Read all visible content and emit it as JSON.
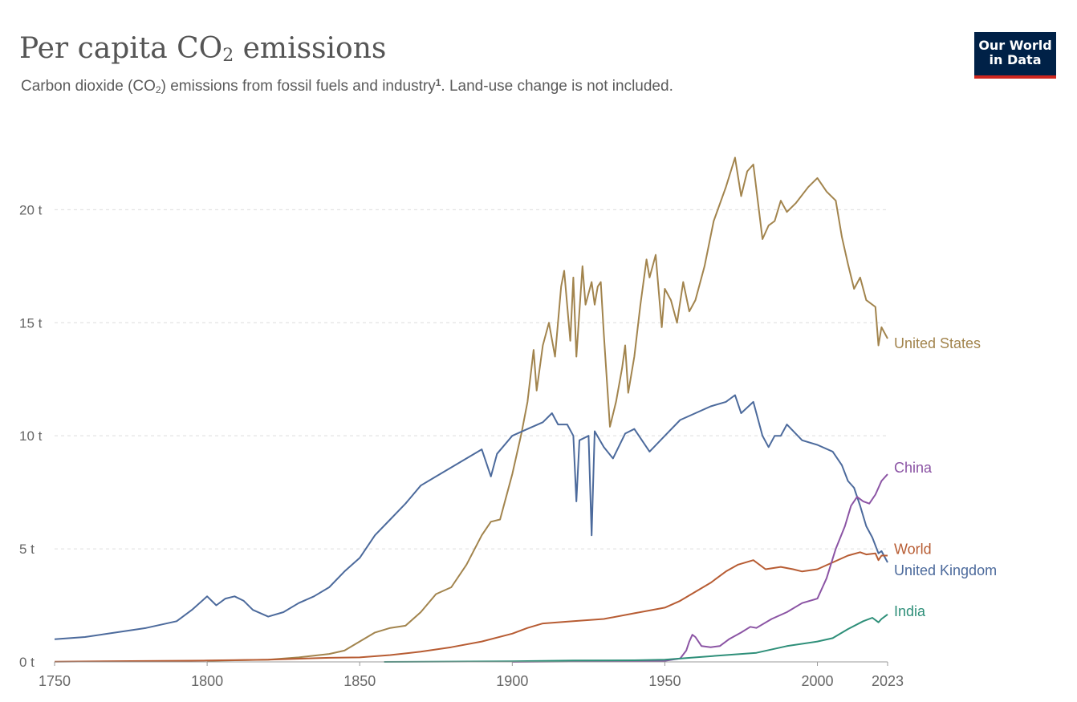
{
  "header": {
    "title_main": "Per capita CO",
    "title_sub": "2",
    "title_end": " emissions",
    "subtitle_a": "Carbon dioxide (CO",
    "subtitle_sub": "2",
    "subtitle_b": ") emissions from fossil fuels and industry",
    "subtitle_sup": "1",
    "subtitle_c": ". Land-use change is not included.",
    "logo_line1": "Our World",
    "logo_line2": "in Data"
  },
  "chart_data": {
    "type": "line",
    "title": "Per capita CO₂ emissions",
    "subtitle": "Carbon dioxide (CO₂) emissions from fossil fuels and industry¹. Land-use change is not included.",
    "xlim": [
      1750,
      2023
    ],
    "ylim": [
      0,
      22
    ],
    "x_ticks": [
      1750,
      1800,
      1850,
      1900,
      1950,
      2000,
      2023
    ],
    "y_ticks": [
      0,
      5,
      10,
      15,
      20
    ],
    "y_tick_labels": [
      "0 t",
      "5 t",
      "10 t",
      "15 t",
      "20 t"
    ],
    "grid": "horizontal dashed",
    "legend": "inline labels at right end of lines",
    "series": [
      {
        "name": "United States",
        "color": "#a2844d",
        "points": [
          [
            1800,
            0.05
          ],
          [
            1820,
            0.1
          ],
          [
            1830,
            0.2
          ],
          [
            1840,
            0.35
          ],
          [
            1845,
            0.5
          ],
          [
            1850,
            0.9
          ],
          [
            1855,
            1.3
          ],
          [
            1860,
            1.5
          ],
          [
            1865,
            1.6
          ],
          [
            1870,
            2.2
          ],
          [
            1875,
            3.0
          ],
          [
            1880,
            3.3
          ],
          [
            1885,
            4.3
          ],
          [
            1890,
            5.6
          ],
          [
            1893,
            6.2
          ],
          [
            1896,
            6.3
          ],
          [
            1900,
            8.3
          ],
          [
            1903,
            10.1
          ],
          [
            1905,
            11.5
          ],
          [
            1907,
            13.8
          ],
          [
            1908,
            12.0
          ],
          [
            1910,
            14.0
          ],
          [
            1912,
            15.0
          ],
          [
            1914,
            13.5
          ],
          [
            1916,
            16.6
          ],
          [
            1917,
            17.3
          ],
          [
            1919,
            14.2
          ],
          [
            1920,
            17.0
          ],
          [
            1921,
            13.5
          ],
          [
            1923,
            17.5
          ],
          [
            1924,
            15.8
          ],
          [
            1926,
            16.8
          ],
          [
            1927,
            15.8
          ],
          [
            1928,
            16.6
          ],
          [
            1929,
            16.8
          ],
          [
            1930,
            14.5
          ],
          [
            1932,
            10.4
          ],
          [
            1934,
            11.5
          ],
          [
            1936,
            13.0
          ],
          [
            1937,
            14.0
          ],
          [
            1938,
            11.9
          ],
          [
            1940,
            13.5
          ],
          [
            1942,
            15.8
          ],
          [
            1944,
            17.8
          ],
          [
            1945,
            17.0
          ],
          [
            1947,
            18.0
          ],
          [
            1949,
            14.8
          ],
          [
            1950,
            16.5
          ],
          [
            1952,
            16.0
          ],
          [
            1954,
            15.0
          ],
          [
            1956,
            16.8
          ],
          [
            1958,
            15.5
          ],
          [
            1960,
            16.0
          ],
          [
            1963,
            17.5
          ],
          [
            1966,
            19.5
          ],
          [
            1970,
            21.0
          ],
          [
            1973,
            22.3
          ],
          [
            1975,
            20.6
          ],
          [
            1977,
            21.7
          ],
          [
            1979,
            22.0
          ],
          [
            1982,
            18.7
          ],
          [
            1984,
            19.3
          ],
          [
            1986,
            19.5
          ],
          [
            1988,
            20.4
          ],
          [
            1990,
            19.9
          ],
          [
            1993,
            20.3
          ],
          [
            1997,
            21.0
          ],
          [
            2000,
            21.4
          ],
          [
            2003,
            20.8
          ],
          [
            2006,
            20.4
          ],
          [
            2008,
            18.8
          ],
          [
            2010,
            17.6
          ],
          [
            2012,
            16.5
          ],
          [
            2014,
            17.0
          ],
          [
            2016,
            16.0
          ],
          [
            2019,
            15.7
          ],
          [
            2020,
            14.0
          ],
          [
            2021,
            14.8
          ],
          [
            2023,
            14.3
          ]
        ]
      },
      {
        "name": "United Kingdom",
        "color": "#4c6a9c",
        "points": [
          [
            1750,
            1.0
          ],
          [
            1760,
            1.1
          ],
          [
            1770,
            1.3
          ],
          [
            1780,
            1.5
          ],
          [
            1790,
            1.8
          ],
          [
            1795,
            2.3
          ],
          [
            1800,
            2.9
          ],
          [
            1803,
            2.5
          ],
          [
            1806,
            2.8
          ],
          [
            1809,
            2.9
          ],
          [
            1812,
            2.7
          ],
          [
            1815,
            2.3
          ],
          [
            1820,
            2.0
          ],
          [
            1825,
            2.2
          ],
          [
            1830,
            2.6
          ],
          [
            1835,
            2.9
          ],
          [
            1840,
            3.3
          ],
          [
            1845,
            4.0
          ],
          [
            1850,
            4.6
          ],
          [
            1855,
            5.6
          ],
          [
            1860,
            6.3
          ],
          [
            1865,
            7.0
          ],
          [
            1870,
            7.8
          ],
          [
            1875,
            8.2
          ],
          [
            1880,
            8.6
          ],
          [
            1885,
            9.0
          ],
          [
            1890,
            9.4
          ],
          [
            1893,
            8.2
          ],
          [
            1895,
            9.2
          ],
          [
            1900,
            10.0
          ],
          [
            1905,
            10.3
          ],
          [
            1910,
            10.6
          ],
          [
            1913,
            11.0
          ],
          [
            1915,
            10.5
          ],
          [
            1918,
            10.5
          ],
          [
            1920,
            10.0
          ],
          [
            1921,
            7.1
          ],
          [
            1922,
            9.8
          ],
          [
            1925,
            10.0
          ],
          [
            1926,
            5.6
          ],
          [
            1927,
            10.2
          ],
          [
            1930,
            9.5
          ],
          [
            1933,
            9.0
          ],
          [
            1937,
            10.1
          ],
          [
            1940,
            10.3
          ],
          [
            1945,
            9.3
          ],
          [
            1950,
            10.0
          ],
          [
            1955,
            10.7
          ],
          [
            1960,
            11.0
          ],
          [
            1965,
            11.3
          ],
          [
            1970,
            11.5
          ],
          [
            1973,
            11.8
          ],
          [
            1975,
            11.0
          ],
          [
            1979,
            11.5
          ],
          [
            1982,
            10.0
          ],
          [
            1984,
            9.5
          ],
          [
            1986,
            10.0
          ],
          [
            1988,
            10.0
          ],
          [
            1990,
            10.5
          ],
          [
            1995,
            9.8
          ],
          [
            2000,
            9.6
          ],
          [
            2005,
            9.3
          ],
          [
            2008,
            8.7
          ],
          [
            2010,
            8.0
          ],
          [
            2012,
            7.7
          ],
          [
            2014,
            6.9
          ],
          [
            2016,
            6.0
          ],
          [
            2018,
            5.5
          ],
          [
            2020,
            4.8
          ],
          [
            2021,
            4.9
          ],
          [
            2023,
            4.4
          ]
        ]
      },
      {
        "name": "World",
        "color": "#b75c33",
        "points": [
          [
            1750,
            0.01
          ],
          [
            1800,
            0.06
          ],
          [
            1820,
            0.1
          ],
          [
            1840,
            0.18
          ],
          [
            1850,
            0.2
          ],
          [
            1860,
            0.3
          ],
          [
            1870,
            0.45
          ],
          [
            1880,
            0.65
          ],
          [
            1890,
            0.9
          ],
          [
            1900,
            1.25
          ],
          [
            1905,
            1.5
          ],
          [
            1910,
            1.7
          ],
          [
            1920,
            1.8
          ],
          [
            1930,
            1.9
          ],
          [
            1940,
            2.15
          ],
          [
            1950,
            2.4
          ],
          [
            1955,
            2.7
          ],
          [
            1960,
            3.1
          ],
          [
            1965,
            3.5
          ],
          [
            1970,
            4.0
          ],
          [
            1974,
            4.3
          ],
          [
            1979,
            4.5
          ],
          [
            1983,
            4.1
          ],
          [
            1988,
            4.2
          ],
          [
            1992,
            4.1
          ],
          [
            1995,
            4.0
          ],
          [
            2000,
            4.1
          ],
          [
            2005,
            4.4
          ],
          [
            2010,
            4.7
          ],
          [
            2014,
            4.85
          ],
          [
            2016,
            4.75
          ],
          [
            2019,
            4.8
          ],
          [
            2020,
            4.5
          ],
          [
            2021,
            4.7
          ],
          [
            2023,
            4.7
          ]
        ]
      },
      {
        "name": "China",
        "color": "#8b54a4",
        "points": [
          [
            1900,
            0.0
          ],
          [
            1950,
            0.05
          ],
          [
            1955,
            0.15
          ],
          [
            1957,
            0.5
          ],
          [
            1958,
            0.9
          ],
          [
            1959,
            1.2
          ],
          [
            1960,
            1.1
          ],
          [
            1962,
            0.7
          ],
          [
            1965,
            0.65
          ],
          [
            1968,
            0.7
          ],
          [
            1971,
            1.0
          ],
          [
            1975,
            1.3
          ],
          [
            1978,
            1.55
          ],
          [
            1980,
            1.5
          ],
          [
            1985,
            1.9
          ],
          [
            1990,
            2.2
          ],
          [
            1995,
            2.6
          ],
          [
            2000,
            2.8
          ],
          [
            2003,
            3.7
          ],
          [
            2006,
            5.0
          ],
          [
            2009,
            6.0
          ],
          [
            2011,
            6.9
          ],
          [
            2013,
            7.3
          ],
          [
            2015,
            7.1
          ],
          [
            2017,
            7.0
          ],
          [
            2019,
            7.4
          ],
          [
            2021,
            8.0
          ],
          [
            2023,
            8.3
          ]
        ]
      },
      {
        "name": "India",
        "color": "#2e8f79",
        "points": [
          [
            1858,
            0.0
          ],
          [
            1900,
            0.03
          ],
          [
            1920,
            0.06
          ],
          [
            1940,
            0.07
          ],
          [
            1950,
            0.1
          ],
          [
            1960,
            0.2
          ],
          [
            1970,
            0.3
          ],
          [
            1980,
            0.4
          ],
          [
            1990,
            0.7
          ],
          [
            2000,
            0.9
          ],
          [
            2005,
            1.05
          ],
          [
            2010,
            1.45
          ],
          [
            2015,
            1.8
          ],
          [
            2018,
            1.95
          ],
          [
            2020,
            1.75
          ],
          [
            2021,
            1.9
          ],
          [
            2023,
            2.1
          ]
        ]
      }
    ]
  }
}
